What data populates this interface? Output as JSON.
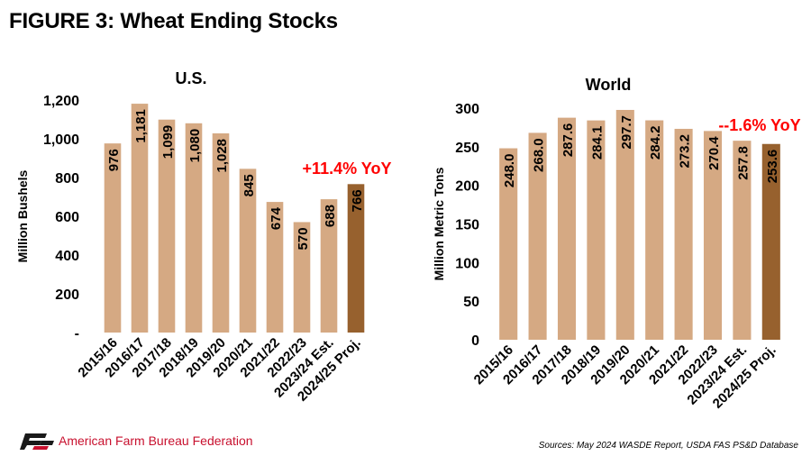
{
  "figure_title": "FIGURE 3: Wheat Ending Stocks",
  "chart_data": [
    {
      "type": "bar",
      "title": "U.S.",
      "xlabel": "",
      "ylabel": "Million Bushels",
      "ylim": [
        0,
        1200
      ],
      "yticks": [
        "-",
        "200",
        "400",
        "600",
        "800",
        "1,000",
        "1,200"
      ],
      "categories": [
        "2015/16",
        "2016/17",
        "2017/18",
        "2018/19",
        "2019/20",
        "2020/21",
        "2021/22",
        "2022/23",
        "2023/24 Est.",
        "2024/25 Proj."
      ],
      "values": [
        976,
        1181,
        1099,
        1080,
        1028,
        845,
        674,
        570,
        688,
        766
      ],
      "value_labels": [
        "976",
        "1,181",
        "1,099",
        "1,080",
        "1,028",
        "845",
        "674",
        "570",
        "688",
        "766"
      ],
      "annotation": "+11.4% YoY",
      "colors": {
        "bar": "#d5a983",
        "highlight": "#97612e",
        "annotation": "#ff0000"
      },
      "grid": false
    },
    {
      "type": "bar",
      "title": "World",
      "xlabel": "",
      "ylabel": "Million Metric Tons",
      "ylim": [
        0,
        300
      ],
      "yticks": [
        "0",
        "50",
        "100",
        "150",
        "200",
        "250",
        "300"
      ],
      "categories": [
        "2015/16",
        "2016/17",
        "2017/18",
        "2018/19",
        "2019/20",
        "2020/21",
        "2021/22",
        "2022/23",
        "2023/24 Est.",
        "2024/25 Proj."
      ],
      "values": [
        248.0,
        268.0,
        287.6,
        284.1,
        297.7,
        284.2,
        273.2,
        270.4,
        257.8,
        253.6
      ],
      "value_labels": [
        "248.0",
        "268.0",
        "287.6",
        "284.1",
        "297.7",
        "284.2",
        "273.2",
        "270.4",
        "257.8",
        "253.6"
      ],
      "annotation": "--1.6% YoY",
      "colors": {
        "bar": "#d5a983",
        "highlight": "#97612e",
        "annotation": "#ff0000"
      },
      "grid": false
    }
  ],
  "footer": {
    "organization": "American Farm Bureau Federation",
    "source": "Sources: May 2024 WASDE Report, USDA FAS PS&D Database",
    "logo_color": "#1a1a1a"
  }
}
